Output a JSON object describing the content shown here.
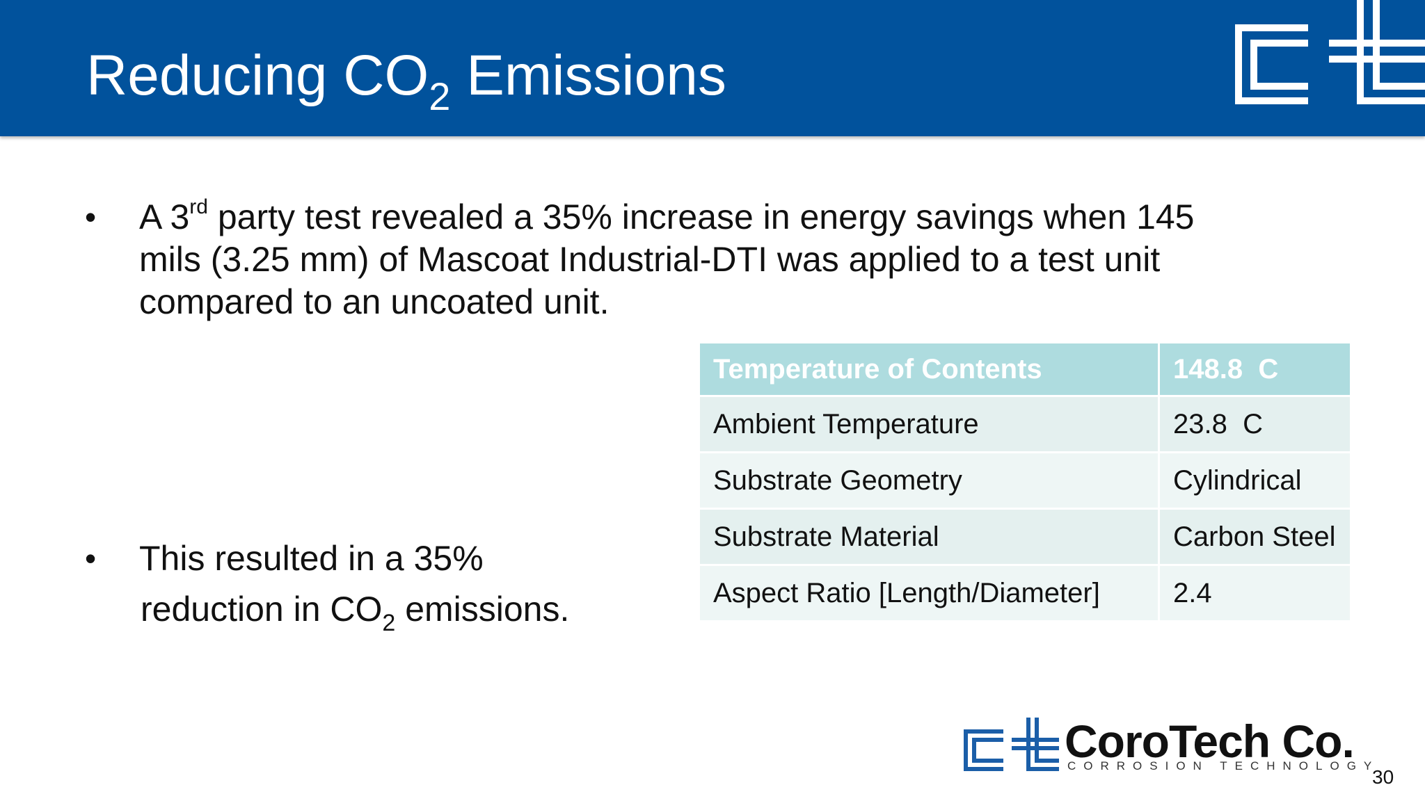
{
  "header": {
    "title": {
      "before": "Reducing CO",
      "sub": "2",
      "after": " Emissions"
    }
  },
  "bullets": [
    {
      "before": "A 3",
      "sup": "rd",
      "after": " party test revealed a 35% increase in energy savings when 145 mils (3.25 mm) of Mascoat Industrial-DTI was applied to a test unit compared to an uncoated unit."
    },
    {
      "line1": "This resulted in a 35%",
      "before": "reduction in CO",
      "sub": "2",
      "after": " emissions."
    }
  ],
  "table": {
    "header": [
      "Temperature of Contents",
      "148.8  C"
    ],
    "rows": [
      [
        "Ambient Temperature",
        "23.8  C"
      ],
      [
        "Substrate Geometry",
        "Cylindrical"
      ],
      [
        "Substrate Material",
        "Carbon Steel"
      ],
      [
        "Aspect Ratio [Length/Diameter]",
        "2.4"
      ]
    ]
  },
  "footer": {
    "brand": "CoroTech Co.",
    "tagline": "CORROSION TECHNOLOGY",
    "page": "30"
  }
}
